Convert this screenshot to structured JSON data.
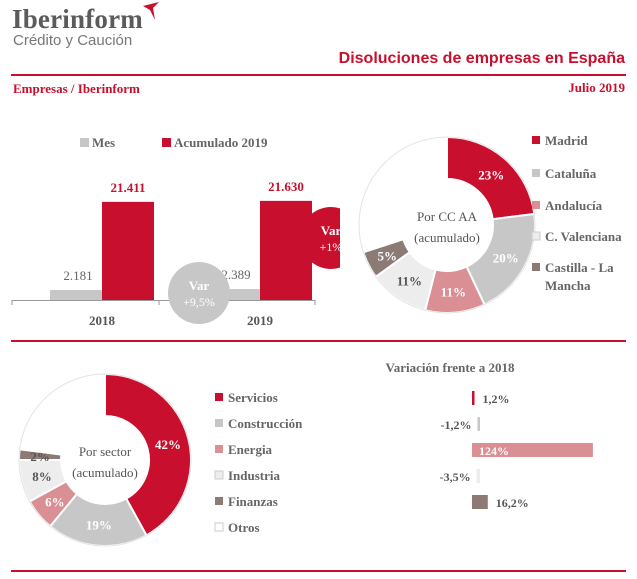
{
  "header": {
    "logo_name": "Iberinform",
    "logo_sub": "Crédito y Caución",
    "title": "Disoluciones de empresas en España",
    "source": "Empresas / Iberinform",
    "date": "Julio 2019"
  },
  "colors": {
    "red": "#c8102e",
    "grey": "#c7c7c7",
    "pink": "#d98f94",
    "lightgrey": "#ededed",
    "brown": "#8c7b75",
    "white": "#ffffff"
  },
  "chart_data": [
    {
      "type": "bar",
      "categories": [
        "2018",
        "2019"
      ],
      "series": [
        {
          "name": "Mes",
          "values": [
            2181,
            2389
          ],
          "labels": [
            "2.181",
            "2.389"
          ]
        },
        {
          "name": "Acumulado 2019",
          "values": [
            21411,
            21630
          ],
          "labels": [
            "21.411",
            "21.630"
          ]
        }
      ],
      "ylim": [
        0,
        24000
      ],
      "annotations": [
        {
          "line1": "Var",
          "line2": "+9,5%"
        },
        {
          "line1": "Var",
          "line2": "+1%"
        }
      ]
    },
    {
      "type": "pie",
      "center_label": [
        "Por CC AA",
        "(acumulado)"
      ],
      "slices": [
        {
          "name": "Madrid",
          "value": 23,
          "label": "23%"
        },
        {
          "name": "Cataluña",
          "value": 20,
          "label": "20%"
        },
        {
          "name": "Andalucía",
          "value": 11,
          "label": "11%"
        },
        {
          "name": "C. Valenciana",
          "value": 11,
          "label": "11%"
        },
        {
          "name": "Castilla - La Mancha",
          "value": 5,
          "label": "5%",
          "legend": [
            "Castilla - La",
            "Mancha"
          ]
        },
        {
          "name": "",
          "value": 30,
          "label": ""
        }
      ]
    },
    {
      "type": "pie",
      "center_label": [
        "Por sector",
        "(acumulado)"
      ],
      "slices": [
        {
          "name": "Servicios",
          "value": 42,
          "label": "42%"
        },
        {
          "name": "Construcción",
          "value": 19,
          "label": "19%"
        },
        {
          "name": "Energia",
          "value": 6,
          "label": "6%"
        },
        {
          "name": "Industria",
          "value": 8,
          "label": "8%"
        },
        {
          "name": "Finanzas",
          "value": 2,
          "label": "2%"
        },
        {
          "name": "Otros",
          "value": 23,
          "label": ""
        }
      ]
    },
    {
      "type": "bar",
      "orientation": "horizontal",
      "title": "Variación frente a 2018",
      "categories": [
        "Servicios",
        "Construcción",
        "Energia",
        "Industria",
        "Finanzas"
      ],
      "values": [
        1.2,
        -1.2,
        124,
        -3.5,
        16.2
      ],
      "labels": [
        "1,2%",
        "-1,2%",
        "124%",
        "-3,5%",
        "16,2%"
      ]
    }
  ]
}
